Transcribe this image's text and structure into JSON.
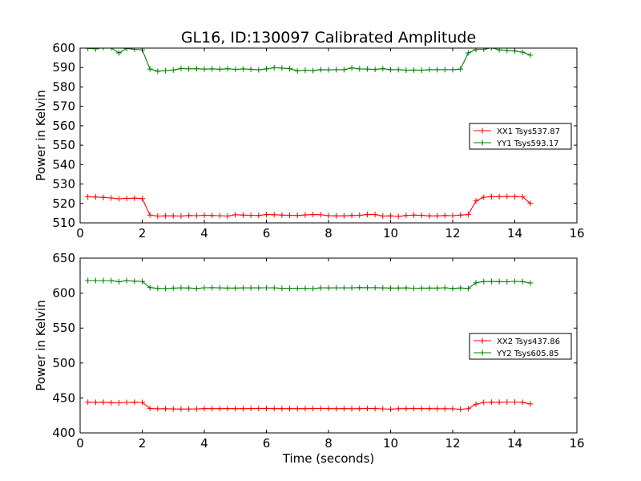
{
  "title": "GL16, ID:130097 Calibrated Amplitude",
  "chart_data": [
    {
      "type": "line",
      "ylabel": "Power in Kelvin",
      "xlabel": "",
      "xlim": [
        0,
        16
      ],
      "ylim": [
        510,
        600
      ],
      "xticks": [
        "0",
        "2",
        "4",
        "6",
        "8",
        "10",
        "12",
        "14",
        "16"
      ],
      "yticks": [
        "510",
        "520",
        "530",
        "540",
        "550",
        "560",
        "570",
        "580",
        "590",
        "600"
      ],
      "legend_position": "center-right",
      "x": [
        0.25,
        0.5,
        0.75,
        1.0,
        1.25,
        1.5,
        1.75,
        2.0,
        2.25,
        2.5,
        2.75,
        3.0,
        3.25,
        3.5,
        3.75,
        4.0,
        4.25,
        4.5,
        4.75,
        5.0,
        5.25,
        5.5,
        5.75,
        6.0,
        6.25,
        6.5,
        6.75,
        7.0,
        7.25,
        7.5,
        7.75,
        8.0,
        8.25,
        8.5,
        8.75,
        9.0,
        9.25,
        9.5,
        9.75,
        10.0,
        10.25,
        10.5,
        10.75,
        11.0,
        11.25,
        11.5,
        11.75,
        12.0,
        12.25,
        12.5,
        12.75,
        13.0,
        13.25,
        13.5,
        13.75,
        14.0,
        14.25,
        14.5
      ],
      "series": [
        {
          "name": "XX1 Tsys537.87",
          "color": "#ff0000",
          "values": [
            523.4,
            523.3,
            523.1,
            522.8,
            522.4,
            522.6,
            522.7,
            522.5,
            514.0,
            513.5,
            513.6,
            513.6,
            513.5,
            513.8,
            513.7,
            513.9,
            513.8,
            513.7,
            513.5,
            514.2,
            514.0,
            513.9,
            513.8,
            514.3,
            514.2,
            514.0,
            513.9,
            513.8,
            514.1,
            514.3,
            514.2,
            513.7,
            513.6,
            513.6,
            513.8,
            513.9,
            514.3,
            514.3,
            513.5,
            513.6,
            513.3,
            513.8,
            514.0,
            513.9,
            513.6,
            513.6,
            513.8,
            513.7,
            514.0,
            514.3,
            521.3,
            523.2,
            523.5,
            523.5,
            523.6,
            523.5,
            523.4,
            520.0
          ]
        },
        {
          "name": "YY1 Tsys593.17",
          "color": "#008000",
          "values": [
            599.9,
            599.6,
            600.3,
            600.1,
            597.5,
            599.8,
            599.4,
            599.1,
            589.2,
            588.1,
            588.4,
            588.7,
            589.5,
            589.3,
            589.4,
            589.2,
            589.3,
            589.1,
            589.4,
            589.0,
            589.3,
            589.1,
            588.8,
            589.3,
            589.9,
            589.7,
            589.4,
            588.3,
            588.6,
            588.4,
            588.9,
            588.8,
            588.9,
            588.9,
            589.8,
            589.3,
            589.2,
            589.0,
            589.4,
            588.9,
            588.9,
            588.6,
            588.7,
            588.6,
            588.9,
            588.9,
            588.9,
            588.9,
            589.2,
            597.5,
            599.3,
            599.4,
            600.2,
            599.1,
            598.8,
            598.5,
            597.9,
            596.4
          ]
        }
      ]
    },
    {
      "type": "line",
      "ylabel": "Power in Kelvin",
      "xlabel": "Time (seconds)",
      "xlim": [
        0,
        16
      ],
      "ylim": [
        400,
        650
      ],
      "xticks": [
        "0",
        "2",
        "4",
        "6",
        "8",
        "10",
        "12",
        "14",
        "16"
      ],
      "yticks": [
        "400",
        "450",
        "500",
        "550",
        "600",
        "650"
      ],
      "legend_position": "center-right",
      "x": [
        0.25,
        0.5,
        0.75,
        1.0,
        1.25,
        1.5,
        1.75,
        2.0,
        2.25,
        2.5,
        2.75,
        3.0,
        3.25,
        3.5,
        3.75,
        4.0,
        4.25,
        4.5,
        4.75,
        5.0,
        5.25,
        5.5,
        5.75,
        6.0,
        6.25,
        6.5,
        6.75,
        7.0,
        7.25,
        7.5,
        7.75,
        8.0,
        8.25,
        8.5,
        8.75,
        9.0,
        9.25,
        9.5,
        9.75,
        10.0,
        10.25,
        10.5,
        10.75,
        11.0,
        11.25,
        11.5,
        11.75,
        12.0,
        12.25,
        12.5,
        12.75,
        13.0,
        13.25,
        13.5,
        13.75,
        14.0,
        14.25,
        14.5
      ],
      "series": [
        {
          "name": "XX2 Tsys437.86",
          "color": "#ff0000",
          "values": [
            443.8,
            443.7,
            443.8,
            443.2,
            443.0,
            443.6,
            443.8,
            443.6,
            434.9,
            434.5,
            434.6,
            434.3,
            434.1,
            434.2,
            434.3,
            434.8,
            434.7,
            434.7,
            434.9,
            434.7,
            434.7,
            434.9,
            434.9,
            435.0,
            434.8,
            434.7,
            434.7,
            434.7,
            434.7,
            434.9,
            435.0,
            434.9,
            434.6,
            434.9,
            434.6,
            434.7,
            434.9,
            434.9,
            434.4,
            434.0,
            434.6,
            434.7,
            434.9,
            434.7,
            434.7,
            434.6,
            434.6,
            434.5,
            433.8,
            434.6,
            441.0,
            443.6,
            443.8,
            443.8,
            444.1,
            444.2,
            443.7,
            441.4
          ]
        },
        {
          "name": "YY2 Tsys605.85",
          "color": "#008000",
          "values": [
            617.9,
            617.9,
            617.9,
            617.9,
            616.2,
            617.9,
            617.1,
            616.8,
            607.9,
            606.8,
            606.5,
            607.1,
            607.5,
            607.3,
            606.7,
            607.6,
            607.7,
            607.5,
            607.2,
            607.2,
            607.4,
            607.4,
            607.4,
            607.6,
            607.5,
            606.8,
            606.9,
            606.9,
            606.9,
            606.4,
            607.5,
            607.4,
            607.5,
            607.5,
            607.5,
            607.8,
            607.7,
            607.7,
            607.4,
            607.2,
            607.2,
            607.4,
            607.0,
            607.1,
            607.2,
            607.2,
            607.6,
            606.6,
            607.3,
            606.6,
            614.8,
            616.5,
            616.6,
            616.4,
            616.2,
            616.8,
            616.4,
            614.4
          ]
        }
      ]
    }
  ]
}
